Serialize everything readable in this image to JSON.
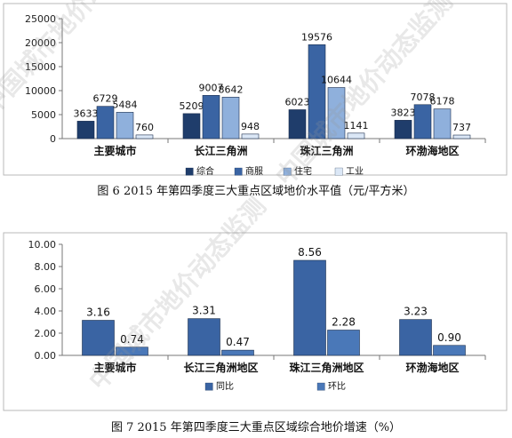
{
  "watermark": "中国城市地价动态监测",
  "charts": [
    {
      "caption": "图 6  2015 年第四季度三大重点区域地价水平值（元/平方米）",
      "legend_markers": [
        "■",
        "■",
        "■",
        "■"
      ]
    },
    {
      "caption": "图 7  2015 年第四季度三大重点区域综合地价增速（%）",
      "legend_markers": [
        "■",
        "■"
      ]
    }
  ],
  "chart_data": [
    {
      "type": "bar",
      "categories": [
        "主要城市",
        "长江三角洲",
        "珠江三角洲",
        "环渤海地区"
      ],
      "series": [
        {
          "name": "综合",
          "values": [
            3633,
            5209,
            6023,
            3823
          ],
          "color": "#1f3d6b"
        },
        {
          "name": "商服",
          "values": [
            6729,
            9007,
            19576,
            7078
          ],
          "color": "#3a64a3"
        },
        {
          "name": "住宅",
          "values": [
            5484,
            8642,
            10644,
            6178
          ],
          "color": "#8fb0dc"
        },
        {
          "name": "工业",
          "values": [
            760,
            948,
            1141,
            737
          ],
          "color": "#dbe7f6"
        }
      ],
      "yticks": [
        "0",
        "5000",
        "10000",
        "15000",
        "20000",
        "25000"
      ],
      "ylim": [
        0,
        25000
      ],
      "data_labels": true,
      "legend_position": "bottom",
      "xlabel": "",
      "ylabel": "",
      "title": ""
    },
    {
      "type": "bar",
      "categories": [
        "主要城市",
        "长江三角洲地区",
        "珠江三角洲地区",
        "环渤海地区"
      ],
      "series": [
        {
          "name": "同比",
          "values": [
            3.16,
            3.31,
            8.56,
            3.23
          ],
          "color": "#3a64a3"
        },
        {
          "name": "环比",
          "values": [
            0.74,
            0.47,
            2.28,
            0.9
          ],
          "color": "#4a78b8"
        }
      ],
      "value_labels": [
        [
          "3.16",
          "3.31",
          "8.56",
          "3.23"
        ],
        [
          "0.74",
          "0.47",
          "2.28",
          "0.90"
        ]
      ],
      "yticks": [
        "0.00",
        "2.00",
        "4.00",
        "6.00",
        "8.00",
        "10.00"
      ],
      "ylim": [
        0,
        10
      ],
      "data_labels": true,
      "legend_position": "bottom",
      "xlabel": "",
      "ylabel": "",
      "title": ""
    }
  ]
}
